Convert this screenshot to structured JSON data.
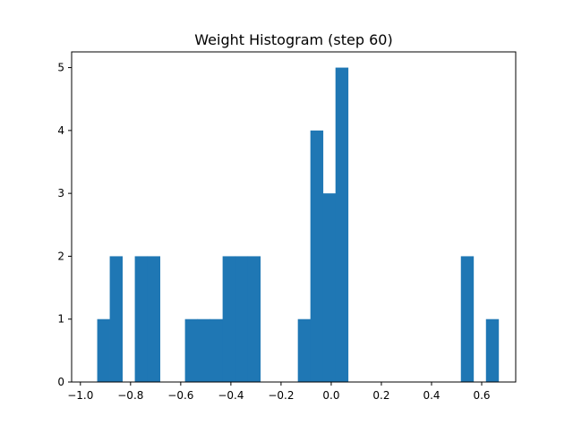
{
  "chart_data": {
    "type": "bar",
    "title": "Weight Histogram (step 60)",
    "xlabel": "",
    "ylabel": "",
    "bin_width": 0.05,
    "bins": [
      {
        "x0": -0.933,
        "count": 1
      },
      {
        "x0": -0.883,
        "count": 2
      },
      {
        "x0": -0.833,
        "count": 0
      },
      {
        "x0": -0.783,
        "count": 2
      },
      {
        "x0": -0.733,
        "count": 2
      },
      {
        "x0": -0.683,
        "count": 0
      },
      {
        "x0": -0.633,
        "count": 0
      },
      {
        "x0": -0.583,
        "count": 1
      },
      {
        "x0": -0.533,
        "count": 1
      },
      {
        "x0": -0.483,
        "count": 1
      },
      {
        "x0": -0.433,
        "count": 2
      },
      {
        "x0": -0.383,
        "count": 2
      },
      {
        "x0": -0.333,
        "count": 2
      },
      {
        "x0": -0.283,
        "count": 0
      },
      {
        "x0": -0.233,
        "count": 0
      },
      {
        "x0": -0.183,
        "count": 0
      },
      {
        "x0": -0.133,
        "count": 1
      },
      {
        "x0": -0.083,
        "count": 4
      },
      {
        "x0": -0.033,
        "count": 3
      },
      {
        "x0": 0.017,
        "count": 5
      },
      {
        "x0": 0.067,
        "count": 0
      },
      {
        "x0": 0.117,
        "count": 0
      },
      {
        "x0": 0.167,
        "count": 0
      },
      {
        "x0": 0.217,
        "count": 0
      },
      {
        "x0": 0.267,
        "count": 0
      },
      {
        "x0": 0.317,
        "count": 0
      },
      {
        "x0": 0.367,
        "count": 0
      },
      {
        "x0": 0.417,
        "count": 0
      },
      {
        "x0": 0.467,
        "count": 0
      },
      {
        "x0": 0.517,
        "count": 2
      },
      {
        "x0": 0.567,
        "count": 0
      },
      {
        "x0": 0.617,
        "count": 1
      }
    ],
    "xlim": [
      -1.035,
      0.7356
    ],
    "ylim": [
      0,
      5.25
    ],
    "xticks": [
      -1.0,
      -0.8,
      -0.6,
      -0.4,
      -0.2,
      0.0,
      0.2,
      0.4,
      0.6
    ],
    "xtick_labels": [
      "−1.0",
      "−0.8",
      "−0.6",
      "−0.4",
      "−0.2",
      "0.0",
      "0.2",
      "0.4",
      "0.6"
    ],
    "yticks": [
      0,
      1,
      2,
      3,
      4,
      5
    ],
    "ytick_labels": [
      "0",
      "1",
      "2",
      "3",
      "4",
      "5"
    ],
    "bar_color": "#1f77b4",
    "grid": false,
    "legend": "none"
  }
}
